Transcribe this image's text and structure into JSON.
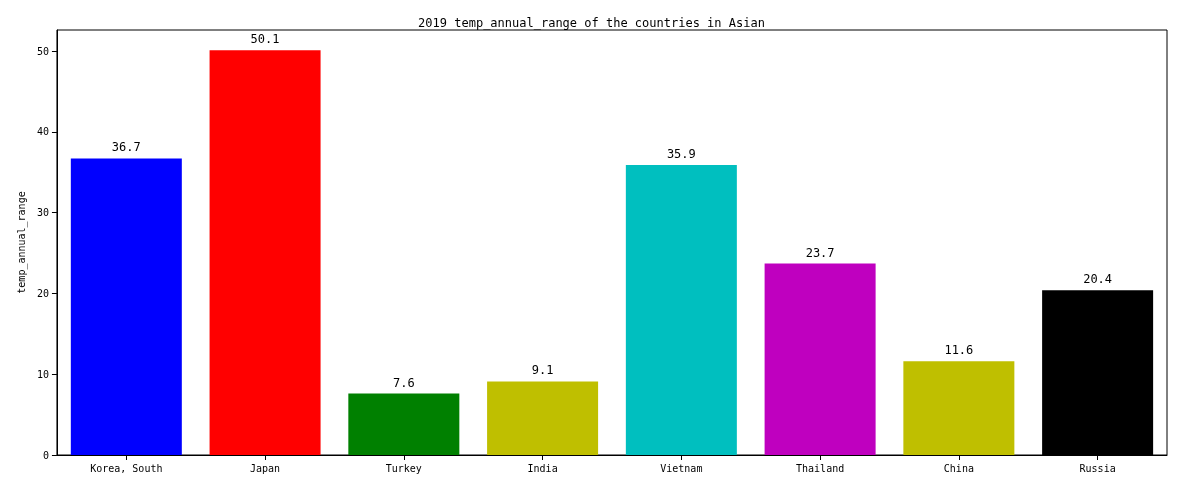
{
  "chart_data": {
    "type": "bar",
    "title": "2019 temp_annual_range of the countries in Asian",
    "ylabel": "temp_annual_range",
    "categories": [
      "Korea, South",
      "Japan",
      "Turkey",
      "India",
      "Vietnam",
      "Thailand",
      "China",
      "Russia"
    ],
    "values": [
      36.7,
      50.1,
      7.6,
      9.1,
      35.9,
      23.7,
      11.6,
      20.4
    ],
    "colors": [
      "#0000ff",
      "#ff0000",
      "#008000",
      "#bfbf00",
      "#00bfbf",
      "#bf00bf",
      "#bfbf00",
      "#000000"
    ],
    "ylim": [
      0,
      52.6
    ],
    "yticks": [
      0,
      10,
      20,
      30,
      40,
      50
    ],
    "data_labels": true,
    "grid": false
  }
}
